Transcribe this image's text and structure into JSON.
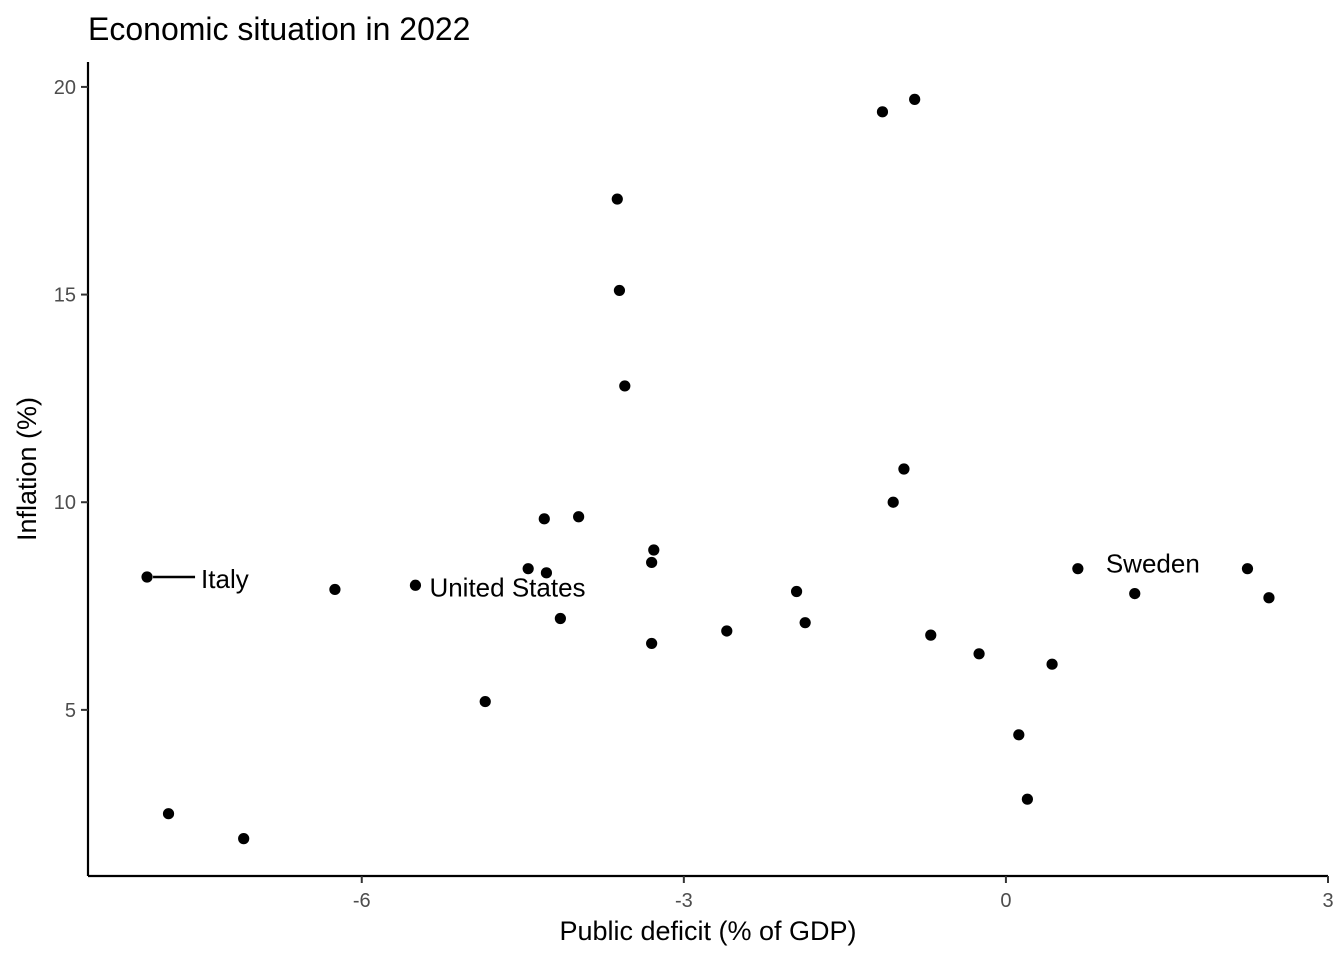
{
  "chart_data": {
    "type": "scatter",
    "title": "Economic situation in 2022",
    "xlabel": "Public deficit (% of GDP)",
    "ylabel": "Inflation (%)",
    "xlim": [
      -8.55,
      3.0
    ],
    "ylim": [
      1.0,
      20.6
    ],
    "xticks": [
      -6,
      -3,
      0,
      3
    ],
    "yticks": [
      5,
      10,
      15,
      20
    ],
    "grid": false,
    "legend": "none",
    "point_color": "#000000",
    "points": [
      {
        "x": -8.0,
        "y": 8.2,
        "label": "Italy"
      },
      {
        "x": -5.5,
        "y": 8.0,
        "label": "United States"
      },
      {
        "x": 0.67,
        "y": 8.4,
        "label": "Sweden"
      },
      {
        "x": -7.8,
        "y": 2.5
      },
      {
        "x": -7.1,
        "y": 1.9
      },
      {
        "x": -6.25,
        "y": 7.9
      },
      {
        "x": -4.85,
        "y": 5.2
      },
      {
        "x": -4.45,
        "y": 8.4
      },
      {
        "x": -4.3,
        "y": 9.6
      },
      {
        "x": -4.28,
        "y": 8.3
      },
      {
        "x": -4.15,
        "y": 7.2
      },
      {
        "x": -3.98,
        "y": 9.65
      },
      {
        "x": -3.62,
        "y": 17.3
      },
      {
        "x": -3.6,
        "y": 15.1
      },
      {
        "x": -3.55,
        "y": 12.8
      },
      {
        "x": -3.3,
        "y": 8.55
      },
      {
        "x": -3.28,
        "y": 8.85
      },
      {
        "x": -3.3,
        "y": 6.6
      },
      {
        "x": -2.6,
        "y": 6.9
      },
      {
        "x": -1.95,
        "y": 7.85
      },
      {
        "x": -1.87,
        "y": 7.1
      },
      {
        "x": -1.15,
        "y": 19.4
      },
      {
        "x": -0.85,
        "y": 19.7
      },
      {
        "x": -0.95,
        "y": 10.8
      },
      {
        "x": -1.05,
        "y": 10.0
      },
      {
        "x": -0.7,
        "y": 6.8
      },
      {
        "x": -0.25,
        "y": 6.35
      },
      {
        "x": 0.12,
        "y": 4.4
      },
      {
        "x": 0.2,
        "y": 2.85
      },
      {
        "x": 0.43,
        "y": 6.1
      },
      {
        "x": 1.2,
        "y": 7.8
      },
      {
        "x": 2.25,
        "y": 8.4
      },
      {
        "x": 2.45,
        "y": 7.7
      }
    ]
  }
}
